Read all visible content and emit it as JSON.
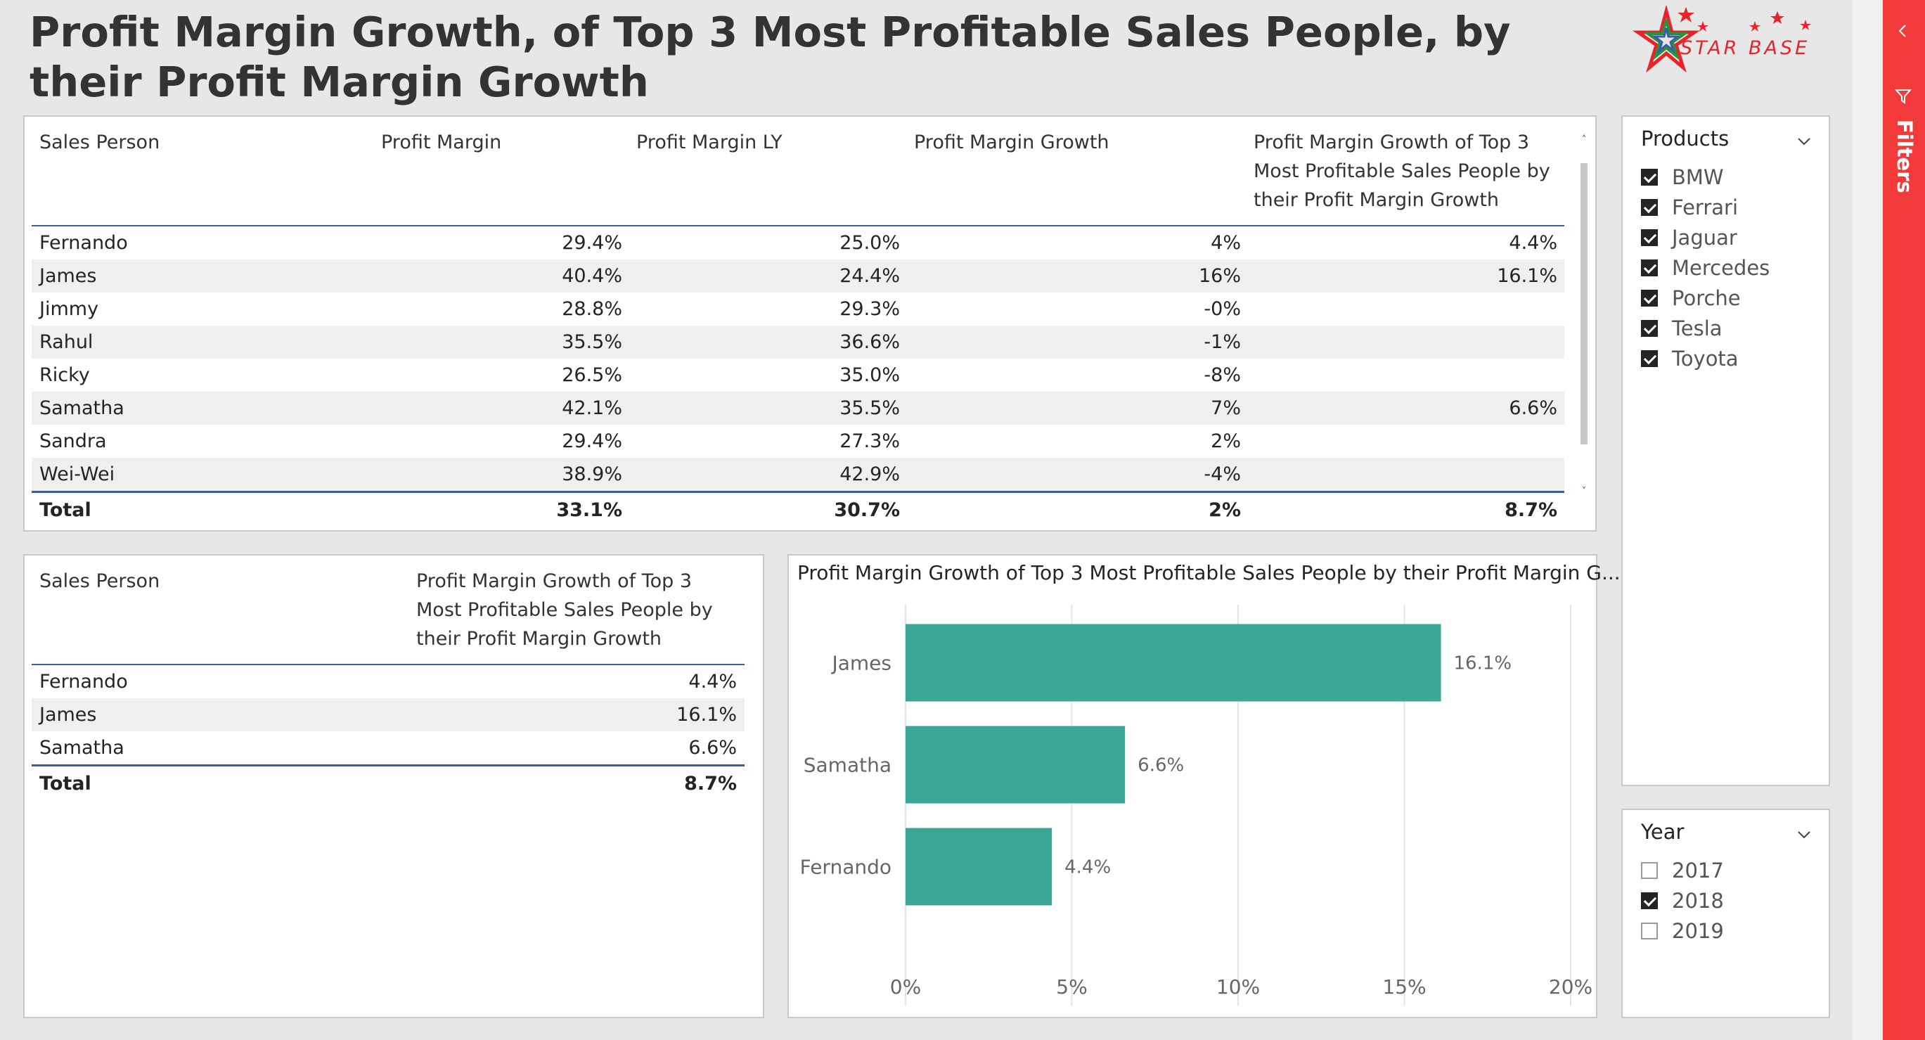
{
  "title": "Profit Margin Growth, of Top 3 Most Profitable Sales People, by their Profit Margin Growth",
  "logo": {
    "text": "STAR BASE"
  },
  "table_main": {
    "headers": [
      "Sales Person",
      "Profit Margin",
      "Profit Margin LY",
      "Profit Margin Growth",
      "Profit Margin Growth of Top 3 Most Profitable Sales People by their Profit Margin Growth"
    ],
    "rows": [
      [
        "Fernando",
        "29.4%",
        "25.0%",
        "4%",
        "4.4%"
      ],
      [
        "James",
        "40.4%",
        "24.4%",
        "16%",
        "16.1%"
      ],
      [
        "Jimmy",
        "28.8%",
        "29.3%",
        "-0%",
        ""
      ],
      [
        "Rahul",
        "35.5%",
        "36.6%",
        "-1%",
        ""
      ],
      [
        "Ricky",
        "26.5%",
        "35.0%",
        "-8%",
        ""
      ],
      [
        "Samatha",
        "42.1%",
        "35.5%",
        "7%",
        "6.6%"
      ],
      [
        "Sandra",
        "29.4%",
        "27.3%",
        "2%",
        ""
      ],
      [
        "Wei-Wei",
        "38.9%",
        "42.9%",
        "-4%",
        ""
      ]
    ],
    "total": [
      "Total",
      "33.1%",
      "30.7%",
      "2%",
      "8.7%"
    ]
  },
  "table_top3": {
    "headers": [
      "Sales Person",
      "Profit Margin Growth of Top 3 Most Profitable Sales People by their Profit Margin Growth"
    ],
    "rows": [
      [
        "Fernando",
        "4.4%"
      ],
      [
        "James",
        "16.1%"
      ],
      [
        "Samatha",
        "6.6%"
      ]
    ],
    "total": [
      "Total",
      "8.7%"
    ]
  },
  "chart_data": {
    "type": "bar",
    "orientation": "horizontal",
    "title": "Profit Margin Growth of Top 3 Most Profitable Sales People by their Profit Margin G...",
    "categories": [
      "James",
      "Samatha",
      "Fernando"
    ],
    "values": [
      16.1,
      6.6,
      4.4
    ],
    "data_labels": [
      "16.1%",
      "6.6%",
      "4.4%"
    ],
    "x_ticks": [
      "0%",
      "5%",
      "10%",
      "15%",
      "20%"
    ],
    "xlim": [
      0,
      20
    ],
    "bar_color": "#3aa794",
    "grid": true,
    "xlabel": "",
    "ylabel": ""
  },
  "slicer_products": {
    "title": "Products",
    "items": [
      {
        "label": "BMW",
        "checked": true
      },
      {
        "label": "Ferrari",
        "checked": true
      },
      {
        "label": "Jaguar",
        "checked": true
      },
      {
        "label": "Mercedes",
        "checked": true
      },
      {
        "label": "Porche",
        "checked": true
      },
      {
        "label": "Tesla",
        "checked": true
      },
      {
        "label": "Toyota",
        "checked": true
      }
    ]
  },
  "slicer_year": {
    "title": "Year",
    "items": [
      {
        "label": "2017",
        "checked": false
      },
      {
        "label": "2018",
        "checked": true
      },
      {
        "label": "2019",
        "checked": false
      }
    ]
  },
  "filters_pane": {
    "label": "Filters"
  },
  "colors": {
    "accent_red": "#f23a3a",
    "header_rule": "#3a5da8",
    "bar": "#3aa794"
  }
}
